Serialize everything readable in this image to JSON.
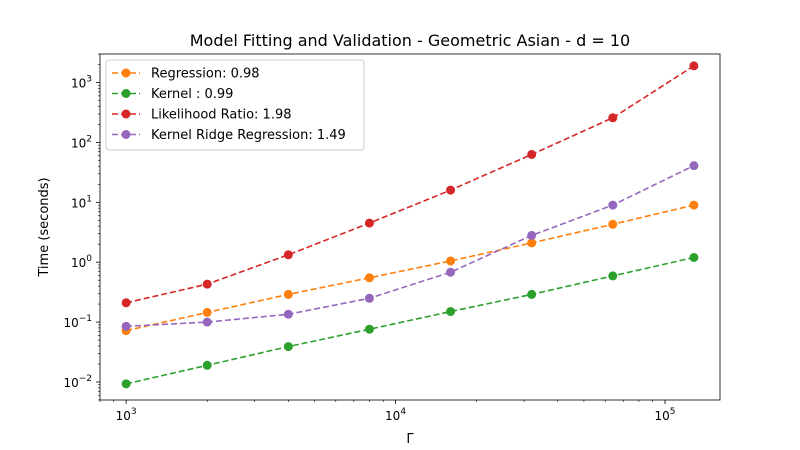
{
  "chart_data": {
    "type": "line",
    "title": "Model Fitting and Validation - Geometric Asian - d = 10",
    "xlabel": "Γ",
    "ylabel": "Time (seconds)",
    "xscale": "log",
    "yscale": "log",
    "xlim": [
      800,
      160000
    ],
    "ylim": [
      0.005,
      3000
    ],
    "xticks": [
      {
        "value": 1000,
        "base": "10",
        "exp": "3"
      },
      {
        "value": 10000,
        "base": "10",
        "exp": "4"
      },
      {
        "value": 100000,
        "base": "10",
        "exp": "5"
      }
    ],
    "yticks": [
      {
        "value": 0.01,
        "base": "10",
        "exp": "−2"
      },
      {
        "value": 0.1,
        "base": "10",
        "exp": "−1"
      },
      {
        "value": 1,
        "base": "10",
        "exp": "0"
      },
      {
        "value": 10,
        "base": "10",
        "exp": "1"
      },
      {
        "value": 100,
        "base": "10",
        "exp": "2"
      },
      {
        "value": 1000,
        "base": "10",
        "exp": "3"
      }
    ],
    "legend_position": "top-left",
    "grid": false,
    "x": [
      1000,
      2000,
      4000,
      8000,
      16000,
      32000,
      64000,
      128000
    ],
    "series": [
      {
        "name": "Regression: 0.98",
        "color": "#ff7f0e",
        "values": [
          0.072,
          0.145,
          0.29,
          0.55,
          1.05,
          2.1,
          4.3,
          9.0
        ]
      },
      {
        "name": "Kernel : 0.99",
        "color": "#2ca02c",
        "values": [
          0.0093,
          0.019,
          0.039,
          0.076,
          0.15,
          0.29,
          0.59,
          1.2
        ]
      },
      {
        "name": "Likelihood Ratio: 1.98",
        "color": "#d62728",
        "values": [
          0.21,
          0.43,
          1.33,
          4.5,
          16.0,
          63.0,
          258.0,
          1900.0
        ]
      },
      {
        "name": "Kernel Ridge Regression: 1.49",
        "color": "#9467bd",
        "values": [
          0.085,
          0.1,
          0.135,
          0.25,
          0.68,
          2.8,
          9.0,
          41.0
        ]
      }
    ]
  }
}
